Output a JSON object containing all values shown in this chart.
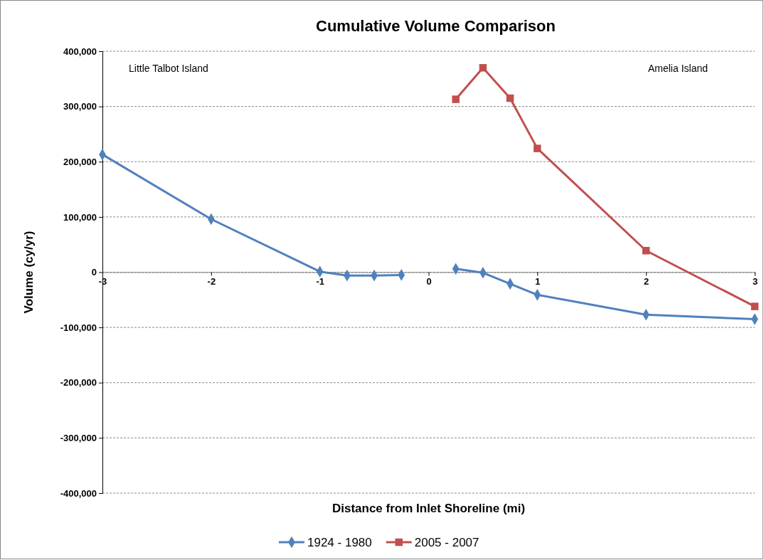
{
  "chart_data": {
    "type": "line",
    "title": "Cumulative Volume Comparison",
    "xlabel": "Distance from Inlet Shoreline (mi)",
    "ylabel": "Volume (cy/yr)",
    "annotations": [
      "Little Talbot Island",
      "Amelia Island"
    ],
    "xlim": [
      -3,
      3
    ],
    "xticks": [
      -3,
      -2,
      -1,
      0,
      1,
      2,
      3
    ],
    "ylim": [
      -400000,
      400000
    ],
    "yticks": [
      {
        "value": -400000,
        "label": "-400,000"
      },
      {
        "value": -300000,
        "label": "-300,000"
      },
      {
        "value": -200000,
        "label": "-200,000"
      },
      {
        "value": -100000,
        "label": "-100,000"
      },
      0,
      {
        "value": 100000,
        "label": "100,000"
      },
      {
        "value": 200000,
        "label": "200,000"
      },
      {
        "value": 300000,
        "label": "300,000"
      },
      {
        "value": 400000,
        "label": "400,000"
      }
    ],
    "grid": "y",
    "legend": "bottom",
    "line_style": "solid",
    "series": [
      {
        "name": "1924 - 1980",
        "color": "#4f81bd",
        "marker": "diamond",
        "x": [
          -3,
          -2,
          -1,
          -0.75,
          -0.5,
          -0.25,
          0,
          0.25,
          0.5,
          0.75,
          1,
          2,
          3
        ],
        "values": [
          213000,
          96000,
          1000,
          -6000,
          -6000,
          -5000,
          null,
          6000,
          -1000,
          -21000,
          -41000,
          -77000,
          -85000
        ]
      },
      {
        "name": "2005 - 2007",
        "color": "#c0504d",
        "marker": "square",
        "x": [
          0.25,
          0.5,
          0.75,
          1,
          2,
          3
        ],
        "values": [
          313000,
          370000,
          315000,
          224000,
          39000,
          -62000
        ]
      }
    ]
  }
}
